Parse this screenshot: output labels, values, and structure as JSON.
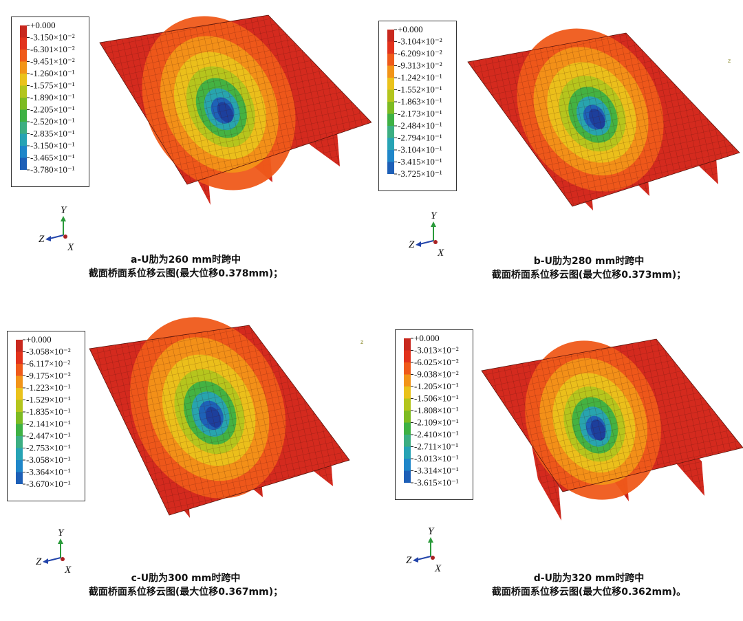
{
  "palette": [
    "#c8281e",
    "#e2321c",
    "#ef5a1a",
    "#f29418",
    "#eac21b",
    "#b3c51d",
    "#7dbb22",
    "#3eb144",
    "#3cae82",
    "#27a3b4",
    "#1f86c9",
    "#1d5fb7",
    "#1d3f9c"
  ],
  "colors": {
    "mesh_line": "#3a0a06",
    "deck": "#d42a1e",
    "frame": "#333333",
    "axis_y": "#2a9a3a",
    "axis_z": "#2244aa",
    "axis_x": "#aa2222"
  },
  "panels": [
    {
      "legend": [
        "+0.000",
        "-3.150×10⁻²",
        "-6.301×10⁻²",
        "-9.451×10⁻²",
        "-1.260×10⁻¹",
        "-1.575×10⁻¹",
        "-1.890×10⁻¹",
        "-2.205×10⁻¹",
        "-2.520×10⁻¹",
        "-2.835×10⁻¹",
        "-3.150×10⁻¹",
        "-3.465×10⁻¹",
        "-3.780×10⁻¹"
      ],
      "caption_line1": "a-U肋为260 mm时跨中",
      "caption_line2": "截面桥面系位移云图(最大位移0.378mm)；",
      "triad": {
        "y": "Y",
        "z": "Z",
        "x": "X"
      },
      "stray": ""
    },
    {
      "legend": [
        "+0.000",
        "-3.104×10⁻²",
        "-6.209×10⁻²",
        "-9.313×10⁻²",
        "-1.242×10⁻¹",
        "-1.552×10⁻¹",
        "-1.863×10⁻¹",
        "-2.173×10⁻¹",
        "-2.484×10⁻¹",
        "-2.794×10⁻¹",
        "-3.104×10⁻¹",
        "-3.415×10⁻¹",
        "-3.725×10⁻¹"
      ],
      "caption_line1": "b-U肋为280 mm时跨中",
      "caption_line2": "截面桥面系位移云图(最大位移0.373mm)；",
      "triad": {
        "y": "Y",
        "z": "Z",
        "x": "X"
      },
      "stray": "z"
    },
    {
      "legend": [
        "+0.000",
        "-3.058×10⁻²",
        "-6.117×10⁻²",
        "-9.175×10⁻²",
        "-1.223×10⁻¹",
        "-1.529×10⁻¹",
        "-1.835×10⁻¹",
        "-2.141×10⁻¹",
        "-2.447×10⁻¹",
        "-2.753×10⁻¹",
        "-3.058×10⁻¹",
        "-3.364×10⁻¹",
        "-3.670×10⁻¹"
      ],
      "caption_line1": "c-U肋为300 mm时跨中",
      "caption_line2": "截面桥面系位移云图(最大位移0.367mm)；",
      "triad": {
        "y": "Y",
        "z": "Z",
        "x": "X"
      },
      "stray": "z"
    },
    {
      "legend": [
        "+0.000",
        "-3.013×10⁻²",
        "-6.025×10⁻²",
        "-9.038×10⁻²",
        "-1.205×10⁻¹",
        "-1.506×10⁻¹",
        "-1.808×10⁻¹",
        "-2.109×10⁻¹",
        "-2.410×10⁻¹",
        "-2.711×10⁻¹",
        "-3.013×10⁻¹",
        "-3.314×10⁻¹",
        "-3.615×10⁻¹"
      ],
      "caption_line1": "d-U肋为320 mm时跨中",
      "caption_line2": "截面桥面系位移云图(最大位移0.362mm)。",
      "triad": {
        "y": "Y",
        "z": "Z",
        "x": "X"
      },
      "stray": ""
    }
  ]
}
